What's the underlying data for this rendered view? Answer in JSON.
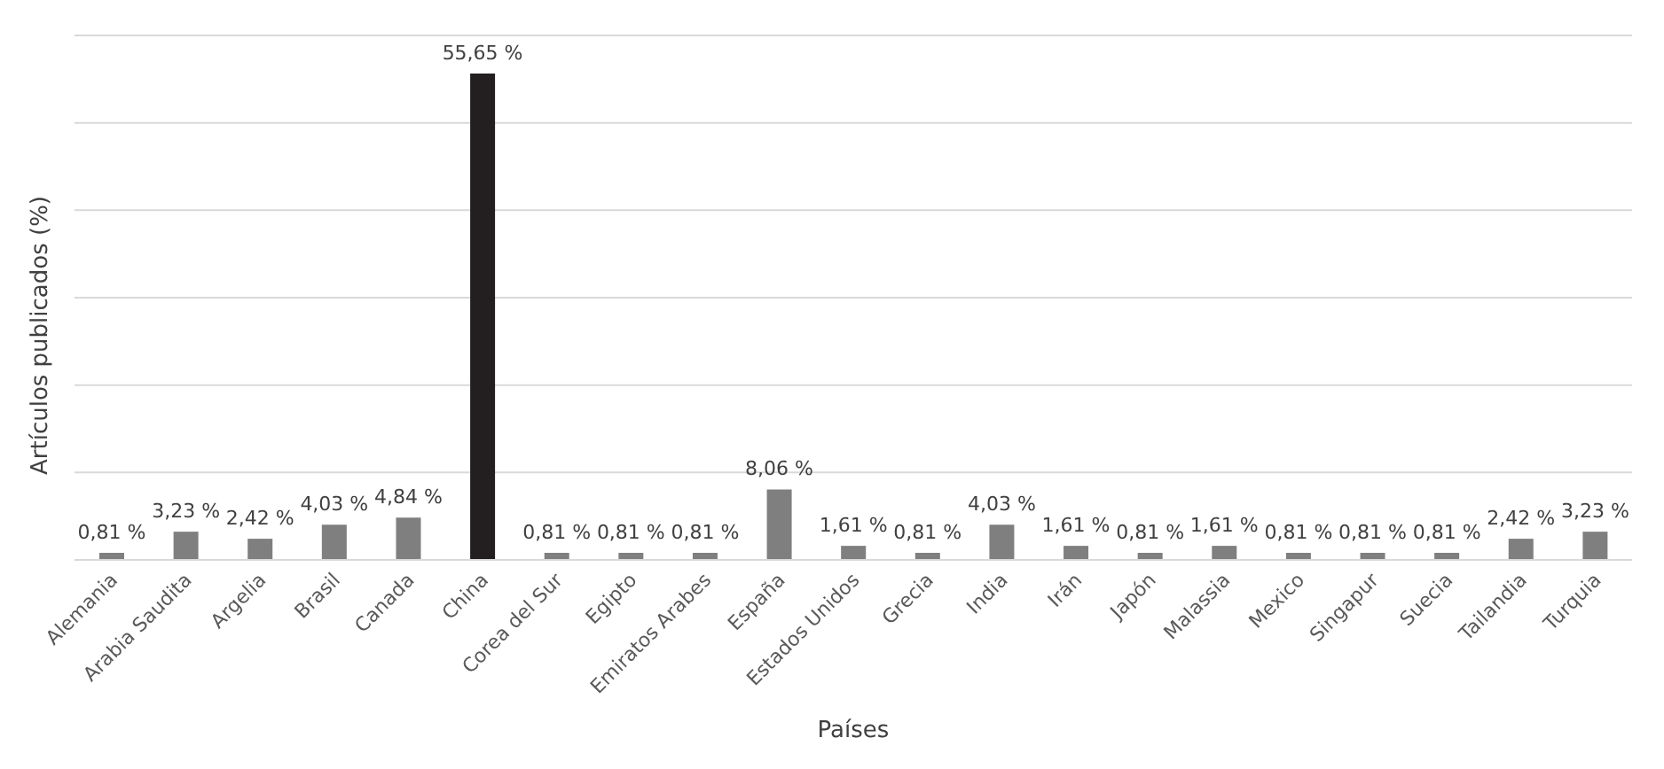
{
  "chart_data": {
    "type": "bar",
    "xlabel": "Países",
    "ylabel": "Artículos publicados (%)",
    "categories": [
      "Alemania",
      "Arabia Saudita",
      "Argelia",
      "Brasil",
      "Canada",
      "China",
      "Corea del Sur",
      "Egipto",
      "Emiratos Arabes",
      "España",
      "Estados Unidos",
      "Grecia",
      "India",
      "Irán",
      "Japón",
      "Malassia",
      "Mexico",
      "Singapur",
      "Suecia",
      "Tailandia",
      "Turquia"
    ],
    "values": [
      0.81,
      3.23,
      2.42,
      4.03,
      4.84,
      55.65,
      0.81,
      0.81,
      0.81,
      8.06,
      1.61,
      0.81,
      4.03,
      1.61,
      0.81,
      1.61,
      0.81,
      0.81,
      0.81,
      2.42,
      3.23
    ],
    "value_labels": [
      "0,81 %",
      "3,23 %",
      "2,42 %",
      "4,03 %",
      "4,84 %",
      "55,65 %",
      "0,81 %",
      "0,81 %",
      "0,81 %",
      "8,06 %",
      "1,61 %",
      "0,81 %",
      "4,03 %",
      "1,61 %",
      "0,81 %",
      "1,61 %",
      "0,81 %",
      "0,81 %",
      "0,81 %",
      "2,42 %",
      "3,23 %"
    ],
    "colors": [
      "#7f7f7f",
      "#7f7f7f",
      "#7f7f7f",
      "#7f7f7f",
      "#7f7f7f",
      "#231f20",
      "#7f7f7f",
      "#7f7f7f",
      "#7f7f7f",
      "#7f7f7f",
      "#7f7f7f",
      "#7f7f7f",
      "#7f7f7f",
      "#7f7f7f",
      "#7f7f7f",
      "#7f7f7f",
      "#7f7f7f",
      "#7f7f7f",
      "#7f7f7f",
      "#7f7f7f",
      "#7f7f7f"
    ],
    "ylim": [
      0,
      60
    ],
    "grid": "y",
    "tick_labels": "x"
  }
}
